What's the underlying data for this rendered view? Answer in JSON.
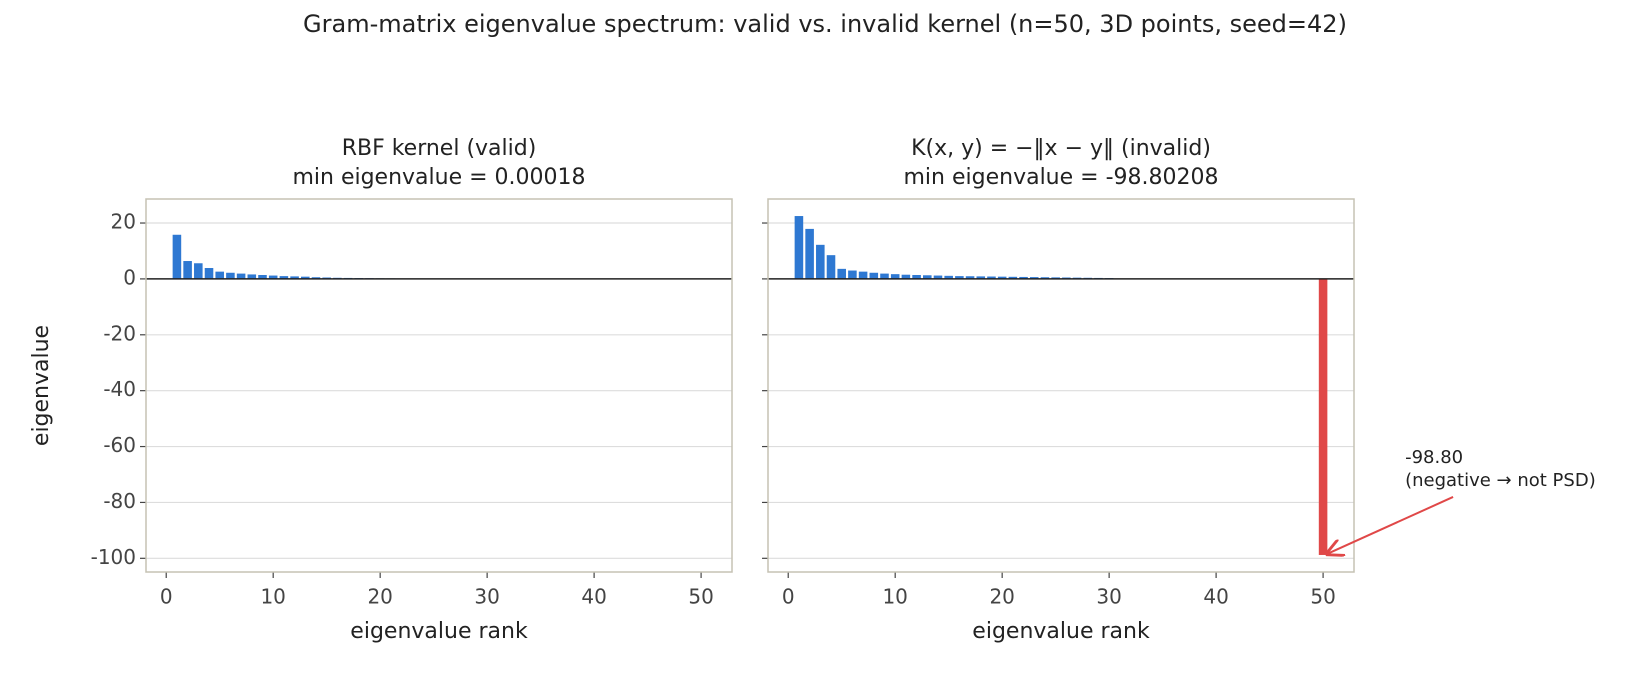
{
  "title": "Gram-matrix eigenvalue spectrum: valid vs. invalid kernel (n=50, 3D points, seed=42)",
  "chart_data": [
    {
      "type": "bar",
      "title": "RBF kernel (valid)",
      "subtitle": "min eigenvalue = 0.00018",
      "xlabel": "eigenvalue rank",
      "ylabel": "eigenvalue",
      "x": [
        1,
        2,
        3,
        4,
        5,
        6,
        7,
        8,
        9,
        10,
        11,
        12,
        13,
        14,
        15,
        16,
        17,
        18,
        19,
        20,
        21,
        22,
        23,
        24,
        25,
        26,
        27,
        28,
        29,
        30,
        31,
        32,
        33,
        34,
        35,
        36,
        37,
        38,
        39,
        40,
        41,
        42,
        43,
        44,
        45,
        46,
        47,
        48,
        49,
        50
      ],
      "values": [
        15.8,
        6.4,
        5.6,
        3.9,
        2.6,
        2.2,
        1.9,
        1.6,
        1.4,
        1.2,
        1.0,
        0.9,
        0.8,
        0.6,
        0.5,
        0.4,
        0.35,
        0.3,
        0.25,
        0.2,
        0.17,
        0.14,
        0.12,
        0.1,
        0.08,
        0.07,
        0.06,
        0.05,
        0.04,
        0.03,
        0.025,
        0.02,
        0.017,
        0.014,
        0.012,
        0.01,
        0.008,
        0.007,
        0.006,
        0.005,
        0.004,
        0.0035,
        0.003,
        0.0025,
        0.002,
        0.0015,
        0.001,
        0.0007,
        0.0004,
        0.00018
      ],
      "color": "#2e78d2",
      "negative_color": "#e04848",
      "xlim": [
        -1.89,
        52.89
      ],
      "ylim": [
        -104.9,
        28.6
      ],
      "xticks": [
        0,
        10,
        20,
        30,
        40,
        50
      ],
      "yticks": [
        -100,
        -80,
        -60,
        -40,
        -20,
        0,
        20
      ],
      "grid": true
    },
    {
      "type": "bar",
      "title": "K(x, y) = −‖x − y‖ (invalid)",
      "subtitle": "min eigenvalue = -98.80208",
      "xlabel": "eigenvalue rank",
      "sharey": true,
      "x": [
        1,
        2,
        3,
        4,
        5,
        6,
        7,
        8,
        9,
        10,
        11,
        12,
        13,
        14,
        15,
        16,
        17,
        18,
        19,
        20,
        21,
        22,
        23,
        24,
        25,
        26,
        27,
        28,
        29,
        30,
        31,
        32,
        33,
        34,
        35,
        36,
        37,
        38,
        39,
        40,
        41,
        42,
        43,
        44,
        45,
        46,
        47,
        48,
        49,
        50
      ],
      "values": [
        22.5,
        17.9,
        12.2,
        8.5,
        3.6,
        3.0,
        2.6,
        2.2,
        1.9,
        1.7,
        1.5,
        1.4,
        1.3,
        1.2,
        1.1,
        1.0,
        0.95,
        0.9,
        0.85,
        0.8,
        0.75,
        0.7,
        0.65,
        0.6,
        0.55,
        0.5,
        0.45,
        0.4,
        0.35,
        0.3,
        0.05,
        0.04,
        0.035,
        0.03,
        0.025,
        0.02,
        0.018,
        0.016,
        0.014,
        0.012,
        0.01,
        0.009,
        0.008,
        0.007,
        0.006,
        0.005,
        0.004,
        0.003,
        0.002,
        -98.80208
      ],
      "color": "#2e78d2",
      "negative_color": "#e04848",
      "xlim": [
        -1.89,
        52.89
      ],
      "ylim": [
        -104.9,
        28.6
      ],
      "xticks": [
        0,
        10,
        20,
        30,
        40,
        50
      ],
      "yticks": [
        -100,
        -80,
        -60,
        -40,
        -20,
        0,
        20
      ],
      "grid": true,
      "annotation": {
        "text": "-98.80",
        "note": "(negative → not PSD)",
        "x": 50,
        "y": -98.80208,
        "color": "#e04848"
      }
    }
  ]
}
